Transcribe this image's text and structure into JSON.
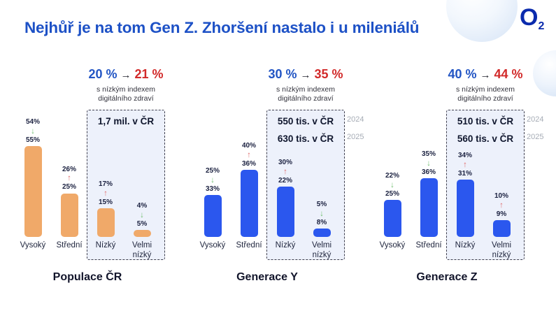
{
  "page": {
    "title": "Nejhůř je na tom Gen Z. Zhoršení nastalo i u mileniálů",
    "logo": {
      "main": "O",
      "sub": "2"
    }
  },
  "icons": {
    "arrow_right": "→",
    "trend_up": "↑",
    "trend_down": "↓"
  },
  "colors": {
    "title_blue": "#1d51c6",
    "logo_blue": "#0b2bad",
    "share_old_blue": "#2255c4",
    "share_new_red": "#d22a2a",
    "orange_bar": "#f0a969",
    "blue_bar": "#2b57ee",
    "trend_up_red": "#e07070",
    "trend_down_green": "#72bf72",
    "box_fill": "#edf1fb",
    "year_gray": "#a6acb6"
  },
  "chart_data": {
    "type": "bar",
    "unit": "%",
    "categories": [
      "Vysoký",
      "Střední",
      "Nízký",
      "Velmi nízký"
    ],
    "note_lines": [
      "s nízkým indexem",
      "digitálního zdraví"
    ],
    "legend_years": [
      "2024",
      "2025"
    ],
    "value_order_note": "top label = 2025 value (bar height), bottom label = 2024 value",
    "groups": [
      {
        "name": "Populace ČR",
        "share_2024": 20,
        "share_2025": 21,
        "box_values": [
          "1,7 mil. v ČR"
        ],
        "year_labels": [],
        "bar_color": "#f0a969",
        "bars": [
          {
            "category": "Vysoký",
            "value_2025": 54,
            "trend": "down",
            "value_2024": 55
          },
          {
            "category": "Střední",
            "value_2025": 26,
            "trend": "up",
            "value_2024": 25
          },
          {
            "category": "Nízký",
            "value_2025": 17,
            "trend": "up",
            "value_2024": 15
          },
          {
            "category": "Velmi nízký",
            "value_2025": 4,
            "trend": "down",
            "value_2024": 5
          }
        ]
      },
      {
        "name": "Generace Y",
        "share_2024": 30,
        "share_2025": 35,
        "box_values": [
          "550 tis. v ČR",
          "630 tis. v ČR"
        ],
        "year_labels": [
          "2024",
          "2025"
        ],
        "bar_color": "#2b57ee",
        "bars": [
          {
            "category": "Vysoký",
            "value_2025": 25,
            "trend": "down",
            "value_2024": 33
          },
          {
            "category": "Střední",
            "value_2025": 40,
            "trend": "up",
            "value_2024": 36
          },
          {
            "category": "Nízký",
            "value_2025": 30,
            "trend": "up",
            "value_2024": 22
          },
          {
            "category": "Velmi nízký",
            "value_2025": 5,
            "trend": "down",
            "value_2024": 8
          }
        ]
      },
      {
        "name": "Generace Z",
        "share_2024": 40,
        "share_2025": 44,
        "box_values": [
          "510 tis. v ČR",
          "560 tis. v ČR"
        ],
        "year_labels": [
          "2024",
          "2025"
        ],
        "bar_color": "#2b57ee",
        "bars": [
          {
            "category": "Vysoký",
            "value_2025": 22,
            "trend": "down",
            "value_2024": 25
          },
          {
            "category": "Střední",
            "value_2025": 35,
            "trend": "down",
            "value_2024": 36
          },
          {
            "category": "Nízký",
            "value_2025": 34,
            "trend": "up",
            "value_2024": 31
          },
          {
            "category": "Velmi nízký",
            "value_2025": 10,
            "trend": "up",
            "value_2024": 9
          }
        ]
      }
    ]
  }
}
